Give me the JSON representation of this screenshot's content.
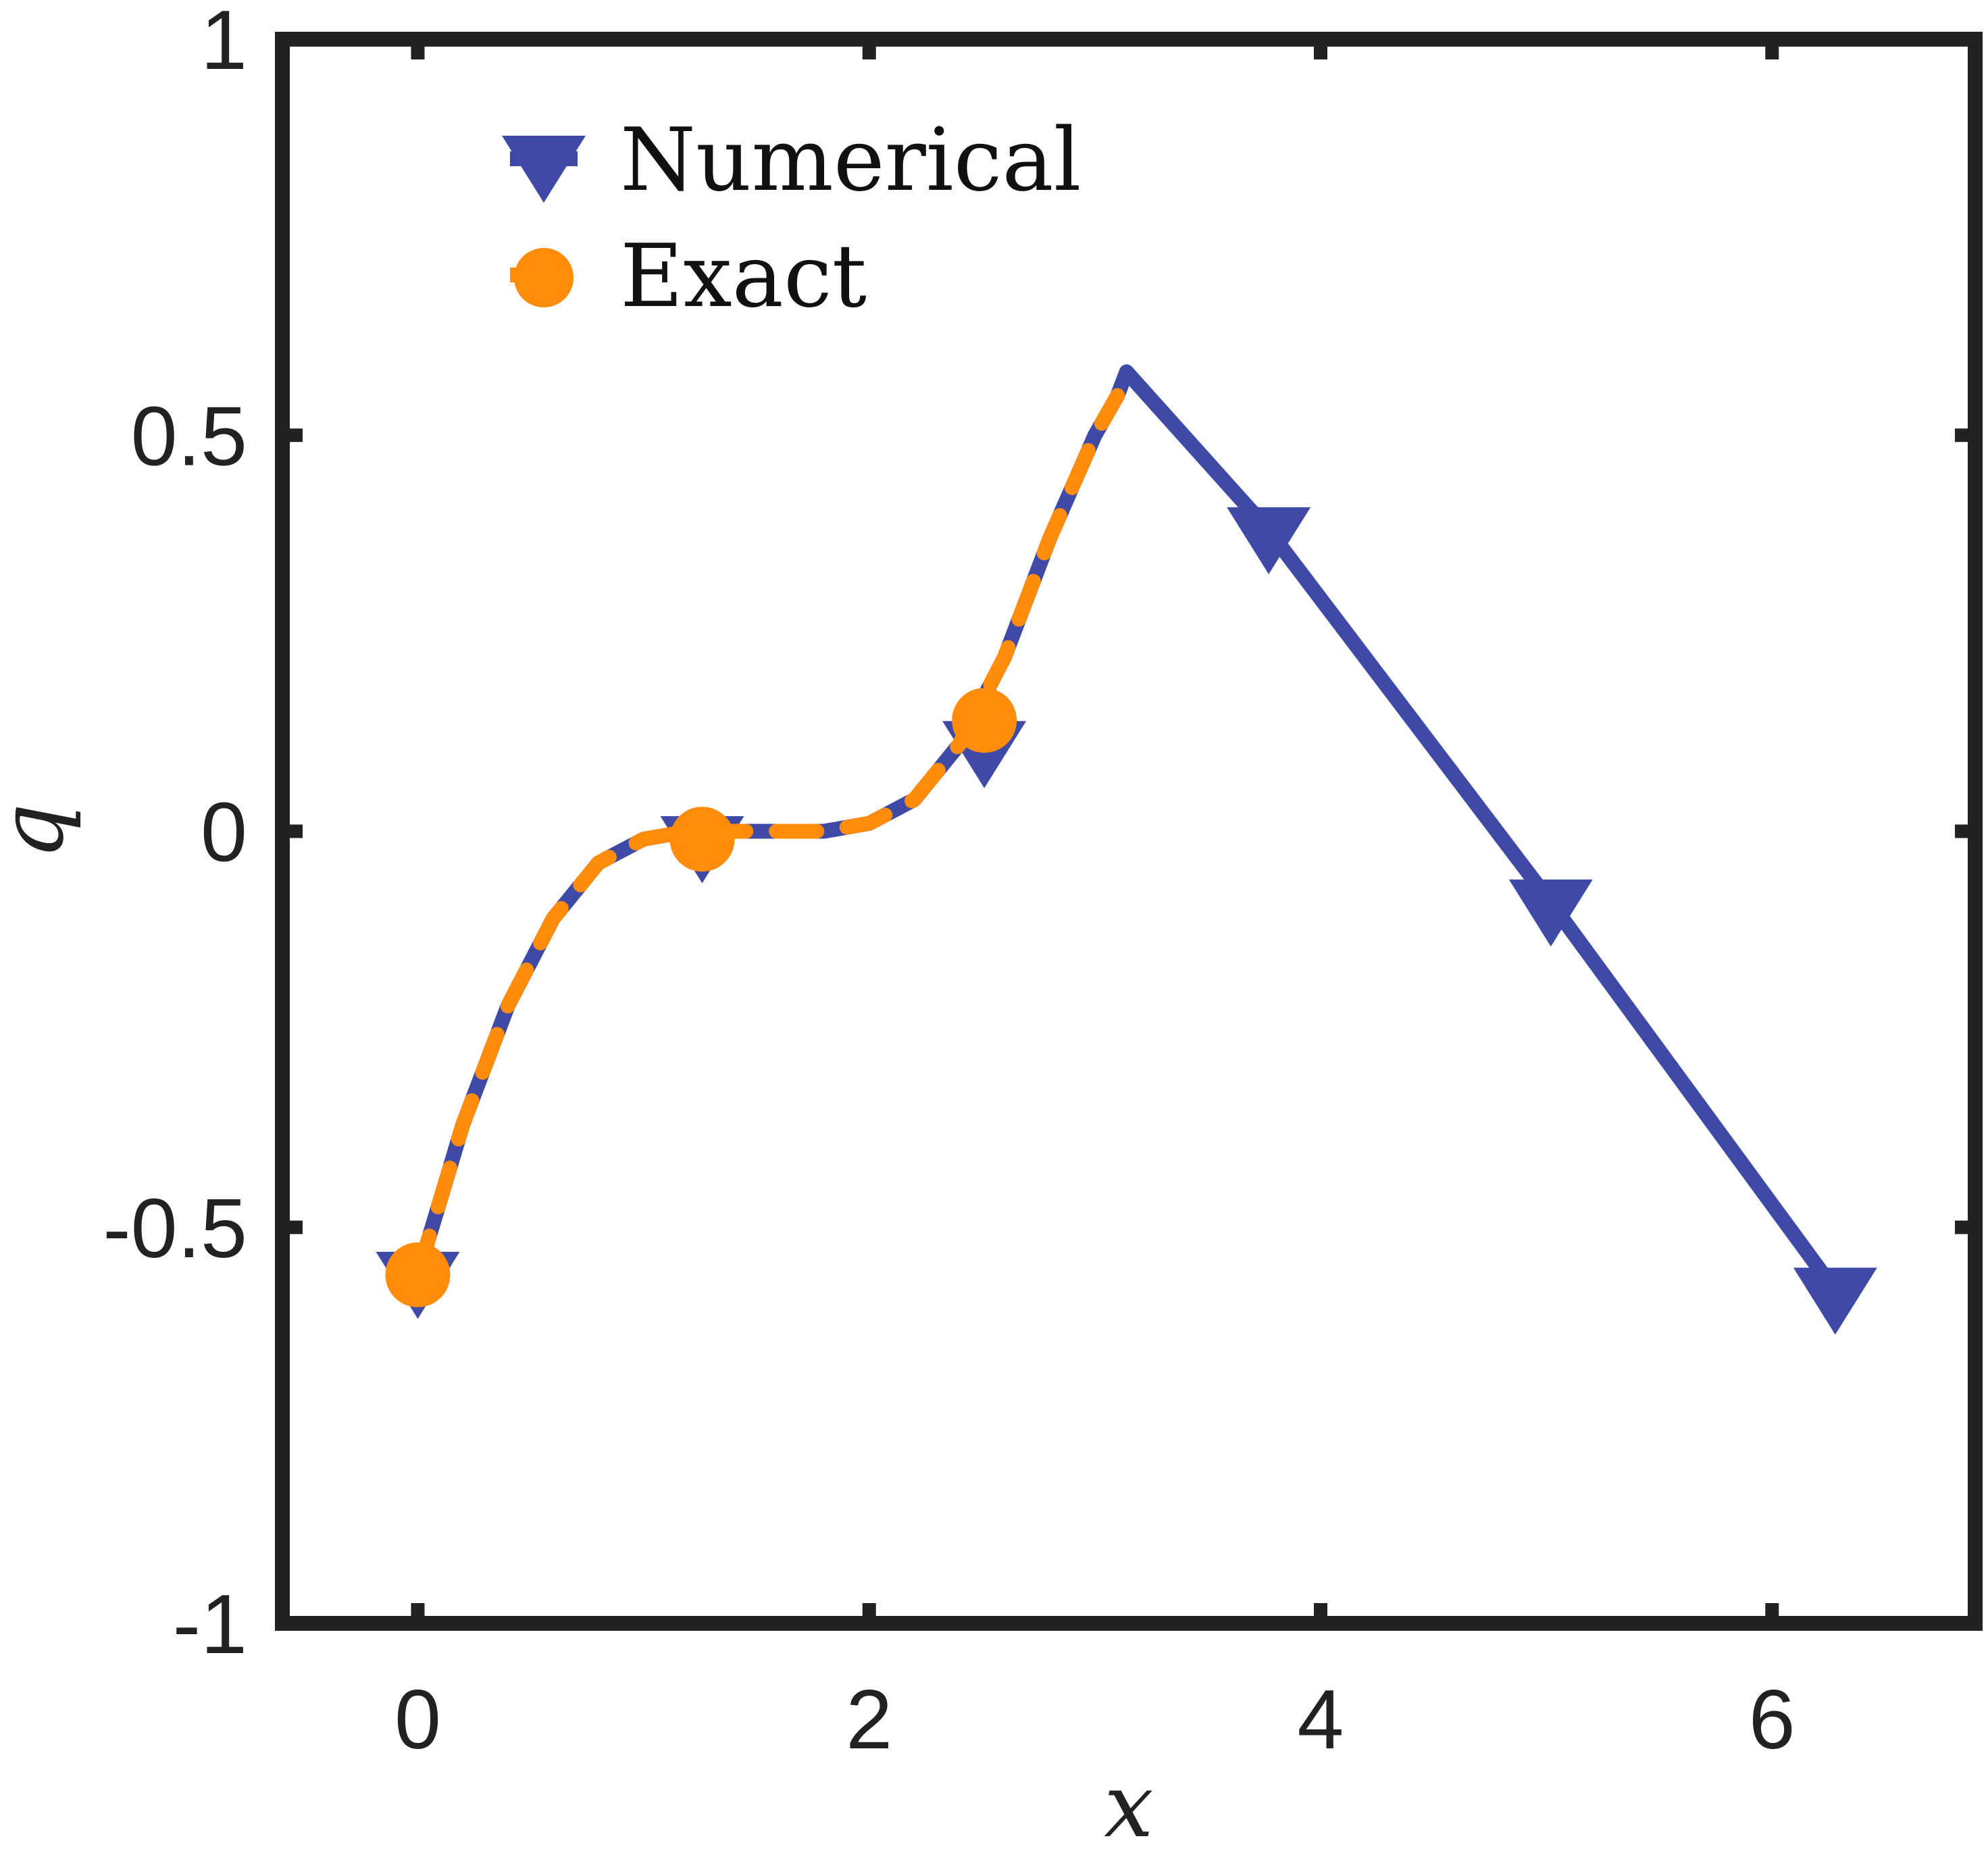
{
  "chart_data": {
    "type": "line",
    "title": "",
    "xlabel": "x",
    "ylabel": "q",
    "xlim": [
      -0.6,
      6.9
    ],
    "ylim": [
      -1,
      1
    ],
    "xticks": [
      0,
      2,
      4,
      6
    ],
    "xtick_labels": [
      "0",
      "2",
      "4",
      "6"
    ],
    "yticks": [
      -1,
      -0.5,
      0,
      0.5,
      1
    ],
    "ytick_labels": [
      "-1",
      "-0.5",
      "0",
      "0.5",
      "1"
    ],
    "grid": false,
    "legend_position": "top-left",
    "series": [
      {
        "name": "Numerical",
        "color": "#3f4aa7",
        "marker": "triangle-down",
        "line": "solid",
        "x": [
          0,
          0.2,
          0.4,
          0.6,
          0.8,
          1.0,
          1.2,
          1.4,
          1.6,
          1.8,
          2.0,
          2.2,
          2.4,
          2.6,
          2.8,
          3.0,
          3.1,
          3.14,
          3.77,
          5.02,
          6.28
        ],
        "y": [
          -0.56,
          -0.37,
          -0.22,
          -0.11,
          -0.04,
          -0.01,
          0.0,
          0.0,
          0.0,
          0.0,
          0.01,
          0.04,
          0.11,
          0.22,
          0.37,
          0.5,
          0.55,
          0.58,
          0.38,
          -0.09,
          -0.58
        ],
        "marker_x": [
          0,
          1.26,
          2.51,
          3.77,
          5.02,
          6.28
        ],
        "marker_y": [
          -0.56,
          -0.01,
          0.11,
          0.38,
          -0.09,
          -0.58
        ]
      },
      {
        "name": "Exact",
        "color": "#ff8c0a",
        "marker": "circle",
        "line": "dashed",
        "x": [
          0,
          0.2,
          0.4,
          0.6,
          0.8,
          1.0,
          1.2,
          1.4,
          1.6,
          1.8,
          2.0,
          2.2,
          2.4,
          2.6,
          2.8,
          3.0,
          3.1
        ],
        "y": [
          -0.56,
          -0.37,
          -0.22,
          -0.11,
          -0.04,
          -0.01,
          0.0,
          0.0,
          0.0,
          0.0,
          0.01,
          0.04,
          0.11,
          0.22,
          0.37,
          0.5,
          0.55
        ],
        "marker_x": [
          0,
          1.26,
          2.51
        ],
        "marker_y": [
          -0.56,
          -0.01,
          0.14
        ]
      }
    ]
  }
}
